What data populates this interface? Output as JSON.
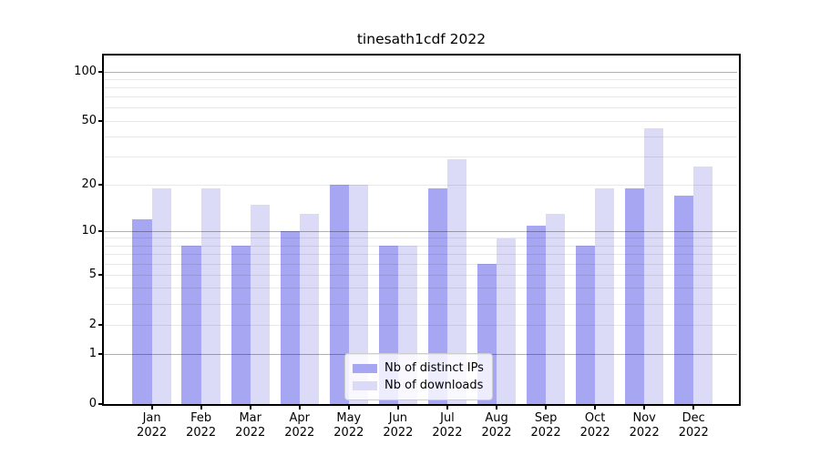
{
  "chart_data": {
    "type": "bar",
    "title": "tinesath1cdf 2022",
    "year": "2022",
    "categories": [
      "Jan",
      "Feb",
      "Mar",
      "Apr",
      "May",
      "Jun",
      "Jul",
      "Aug",
      "Sep",
      "Oct",
      "Nov",
      "Dec"
    ],
    "series": [
      {
        "name": "Nb of distinct IPs",
        "color": "#a6a6f2",
        "values": [
          12,
          8,
          8,
          10,
          20,
          8,
          19,
          6,
          11,
          8,
          19,
          17
        ]
      },
      {
        "name": "Nb of downloads",
        "color": "#dbdbf7",
        "values": [
          19,
          19,
          15,
          13,
          20,
          8,
          29,
          9,
          13,
          19,
          45,
          26
        ]
      }
    ],
    "yscale": "log1p",
    "ylim": [
      0,
      126
    ],
    "yticks": [
      0,
      1,
      2,
      5,
      10,
      20,
      50,
      100
    ],
    "yticks_emphasized": [
      1,
      10,
      100
    ],
    "yticks_minor": [
      3,
      4,
      6,
      7,
      8,
      9,
      30,
      40,
      60,
      70,
      80,
      90
    ],
    "grid": "on",
    "legend_position": "lower-center",
    "xlabel": "",
    "ylabel": ""
  },
  "colors": {
    "background": "#ffffff",
    "axis": "#000000",
    "grid_minor": "#e9e9e9",
    "grid_major": "#b0b0b0",
    "text": "#000000",
    "legend_border": "#cccccc"
  }
}
